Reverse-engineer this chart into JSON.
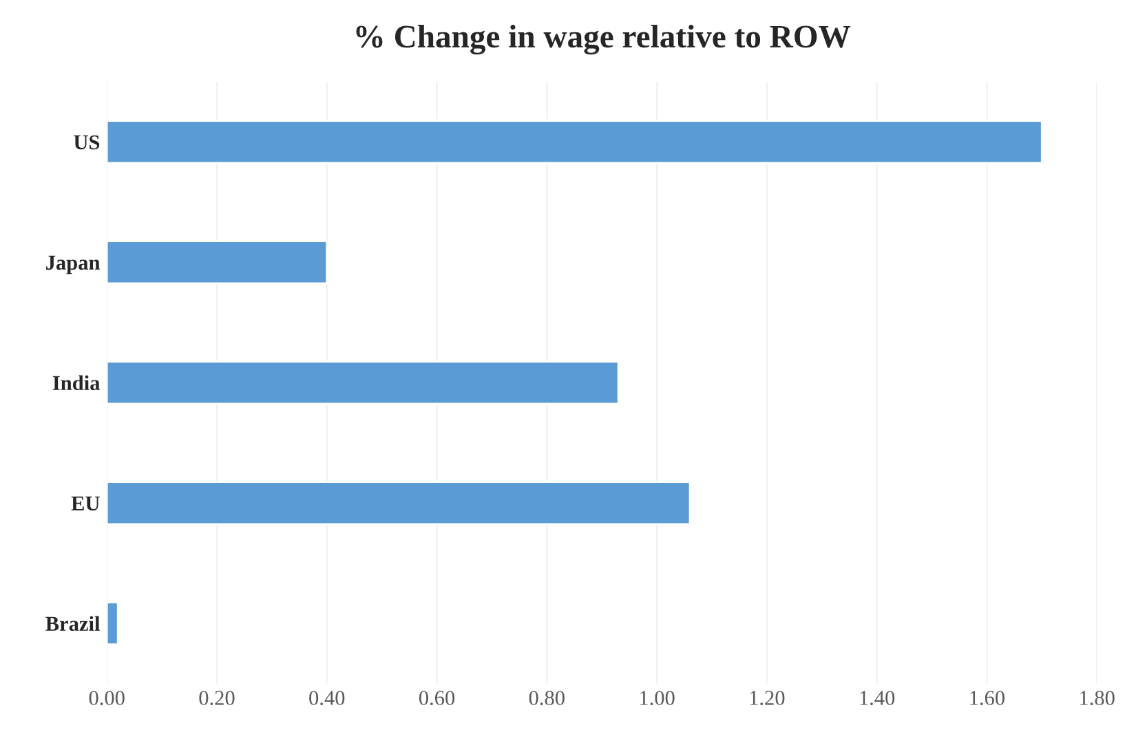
{
  "chart_data": {
    "type": "bar",
    "orientation": "horizontal",
    "title": "% Change in wage relative to ROW",
    "categories": [
      "US",
      "Japan",
      "India",
      "EU",
      "Brazil"
    ],
    "values": [
      1.7,
      0.4,
      0.93,
      1.06,
      0.02
    ],
    "color": "#5b9bd5",
    "xlim": [
      0,
      1.8
    ],
    "xticks": [
      {
        "value": 0,
        "label": "0.00"
      },
      {
        "value": 0.2,
        "label": "0.20"
      },
      {
        "value": 0.4,
        "label": "0.40"
      },
      {
        "value": 0.6,
        "label": "0.60"
      },
      {
        "value": 0.8,
        "label": "0.80"
      },
      {
        "value": 1.0,
        "label": "1.00"
      },
      {
        "value": 1.2,
        "label": "1.20"
      },
      {
        "value": 1.4,
        "label": "1.40"
      },
      {
        "value": 1.6,
        "label": "1.60"
      },
      {
        "value": 1.8,
        "label": "1.80"
      }
    ],
    "grid": "x"
  }
}
